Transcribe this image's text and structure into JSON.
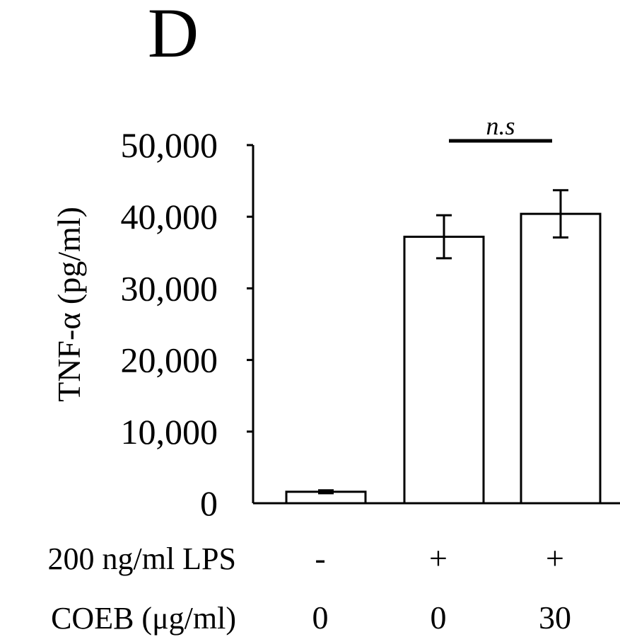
{
  "panel_label": "D",
  "chart_data": {
    "type": "bar",
    "title": "",
    "ylabel": "TNF-α (pg/ml)",
    "xlabel": "",
    "ylim": [
      0,
      50000
    ],
    "yticks": [
      0,
      10000,
      20000,
      30000,
      40000,
      50000
    ],
    "ytick_labels": [
      "0",
      "10,000",
      "20,000",
      "30,000",
      "40,000",
      "50,000"
    ],
    "categories": [
      "1",
      "2",
      "3"
    ],
    "values": [
      1600,
      37200,
      40400
    ],
    "errors": [
      200,
      3000,
      3300
    ],
    "bar_fill": "#ffffff",
    "bar_stroke": "#000000",
    "grid": false,
    "significance": [
      {
        "from": 1,
        "to": 2,
        "label": "n.s"
      }
    ],
    "condition_rows": [
      {
        "label": "200 ng/ml LPS",
        "values": [
          "-",
          "+",
          "+"
        ]
      },
      {
        "label": "COEB (μg/ml)",
        "values": [
          "0",
          "0",
          "30"
        ]
      }
    ]
  }
}
